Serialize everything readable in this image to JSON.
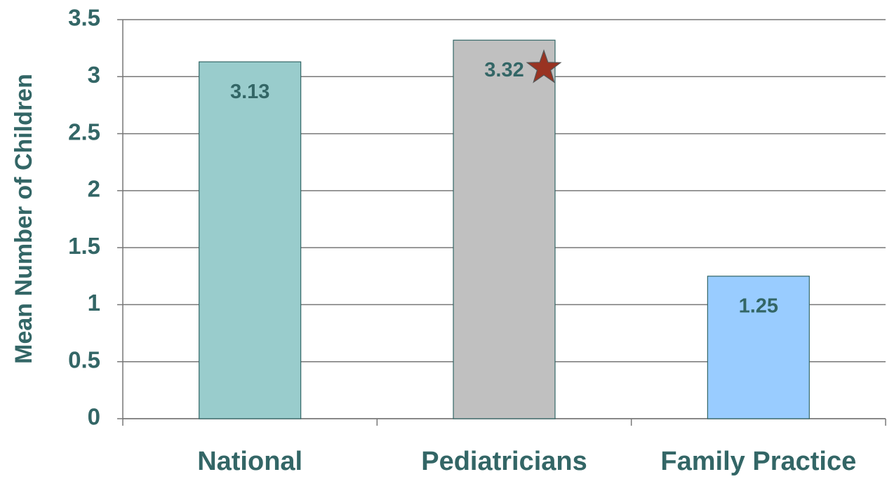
{
  "chart_data": {
    "type": "bar",
    "y_axis_label": "Mean Number of Children",
    "categories": [
      "National",
      "Pediatricians",
      "Family Practice"
    ],
    "values": [
      3.13,
      3.32,
      1.25
    ],
    "colors": [
      "#99cccc",
      "#c0c0c0",
      "#99ccff"
    ],
    "ylim": [
      0,
      3.5
    ],
    "yticks": [
      0,
      0.5,
      1,
      1.5,
      2,
      2.5,
      3,
      3.5
    ],
    "grid": true
  }
}
